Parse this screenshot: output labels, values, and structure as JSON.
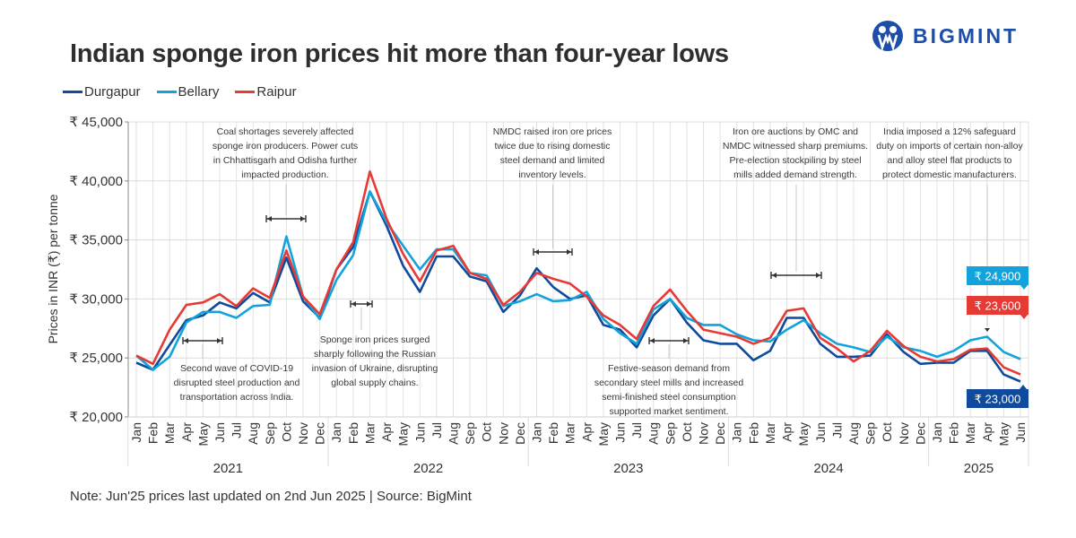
{
  "header": {
    "title": "Indian sponge iron prices hit more than four-year lows",
    "brand": "BIGMINT",
    "brand_color": "#1e4fa8"
  },
  "legend": [
    {
      "name": "Durgapur",
      "color": "#0f4a9c"
    },
    {
      "name": "Bellary",
      "color": "#12a3dc"
    },
    {
      "name": "Raipur",
      "color": "#e63a35"
    }
  ],
  "footer": {
    "note": "Note: Jun'25 prices last updated on 2nd Jun 2025 | Source: BigMint"
  },
  "chart_data": {
    "type": "line",
    "title": "Indian sponge iron prices hit more than four-year lows",
    "xlabel": "",
    "ylabel": "Prices in INR (₹) per tonne",
    "ylim": [
      20000,
      45000
    ],
    "yticks": [
      20000,
      25000,
      30000,
      35000,
      40000,
      45000
    ],
    "ytick_labels": [
      "₹ 20,000",
      "₹ 25,000",
      "₹ 30,000",
      "₹ 35,000",
      "₹ 40,000",
      "₹ 45,000"
    ],
    "grid": true,
    "legend_position": "top-left",
    "years": [
      {
        "label": "2021",
        "months": 12
      },
      {
        "label": "2022",
        "months": 12
      },
      {
        "label": "2023",
        "months": 12
      },
      {
        "label": "2024",
        "months": 12
      },
      {
        "label": "2025",
        "months": 6
      }
    ],
    "month_labels": [
      "Jan",
      "Feb",
      "Mar",
      "Apr",
      "May",
      "Jun",
      "Jul",
      "Aug",
      "Sep",
      "Oct",
      "Nov",
      "Dec"
    ],
    "series": [
      {
        "name": "Durgapur",
        "color": "#0f4a9c",
        "values": [
          24600,
          24000,
          26100,
          28200,
          28600,
          29700,
          29200,
          30500,
          29700,
          33500,
          29800,
          28400,
          32500,
          34400,
          39100,
          36200,
          32800,
          30600,
          33600,
          33600,
          31900,
          31500,
          28900,
          30300,
          32600,
          31000,
          30000,
          30300,
          27800,
          27400,
          25900,
          28600,
          30000,
          28000,
          26500,
          26200,
          26200,
          24800,
          25600,
          28400,
          28400,
          26200,
          25100,
          25100,
          25200,
          27000,
          25500,
          24500,
          24600,
          24600,
          25600,
          25600,
          23600,
          23000
        ]
      },
      {
        "name": "Bellary",
        "color": "#12a3dc",
        "values": [
          25200,
          24000,
          25100,
          28000,
          28900,
          28900,
          28400,
          29400,
          29500,
          35300,
          30200,
          28300,
          31600,
          33700,
          39100,
          36500,
          34500,
          32500,
          34200,
          34200,
          32200,
          32000,
          29400,
          29800,
          30400,
          29800,
          29900,
          30600,
          28300,
          27100,
          26200,
          29100,
          30000,
          28400,
          27800,
          27800,
          27000,
          26500,
          26400,
          27400,
          28200,
          27100,
          26200,
          25900,
          25500,
          26800,
          25900,
          25600,
          25100,
          25600,
          26500,
          26800,
          25500,
          24900
        ]
      },
      {
        "name": "Raipur",
        "color": "#e63a35",
        "values": [
          25200,
          24500,
          27400,
          29500,
          29700,
          30400,
          29400,
          30900,
          30100,
          34100,
          30200,
          28700,
          32500,
          34800,
          40800,
          36800,
          33800,
          31500,
          34100,
          34500,
          32200,
          31700,
          29500,
          30600,
          32200,
          31700,
          31300,
          30200,
          28600,
          27800,
          26600,
          29400,
          30800,
          29000,
          27400,
          27100,
          26800,
          26200,
          26700,
          29000,
          29200,
          26700,
          25800,
          24700,
          25600,
          27300,
          26000,
          25100,
          24700,
          24900,
          25700,
          25800,
          24200,
          23600
        ]
      }
    ],
    "end_labels": [
      {
        "series": "Bellary",
        "text": "₹ 24,900"
      },
      {
        "series": "Raipur",
        "text": "₹ 23,600"
      },
      {
        "series": "Durgapur",
        "text": "₹ 23,000"
      }
    ],
    "annotations": [
      {
        "lines": [
          "Coal shortages severely affected",
          "sponge iron producers. Power cuts",
          "in Chhattisgarh and Odisha further",
          "impacted production."
        ],
        "range": [
          32,
          34
        ],
        "position": "above"
      },
      {
        "lines": [
          "Second wave of COVID-19",
          "disrupted steel production and",
          "transportation across India."
        ],
        "range": [
          3,
          5
        ],
        "position": "below"
      },
      {
        "lines": [
          "Sponge iron prices surged",
          "sharply following the Russian",
          "invasion of Ukraine, disrupting",
          "global supply chains."
        ],
        "range": [
          13,
          14
        ],
        "position": "below"
      },
      {
        "lines": [
          "NMDC raised iron ore prices",
          "twice due to rising domestic",
          "steel demand and limited",
          "inventory levels."
        ],
        "range": [
          24,
          26
        ],
        "position": "above"
      },
      {
        "lines": [
          "Festive-season demand from",
          "secondary steel mills and increased",
          "semi-finished steel consumption",
          "supported market sentiment."
        ],
        "range": [
          31,
          33
        ],
        "position": "below"
      },
      {
        "lines": [
          "Iron ore auctions by OMC and",
          "NMDC witnessed sharp premiums.",
          "Pre-election stockpiling by steel",
          "mills added demand strength."
        ],
        "range": [
          38,
          41
        ],
        "position": "above"
      },
      {
        "lines": [
          "India imposed a 12% safeguard",
          "duty on imports of certain non-alloy",
          "and alloy steel flat products to",
          "protect domestic manufacturers."
        ],
        "range": [
          51,
          51
        ],
        "position": "above"
      }
    ]
  }
}
